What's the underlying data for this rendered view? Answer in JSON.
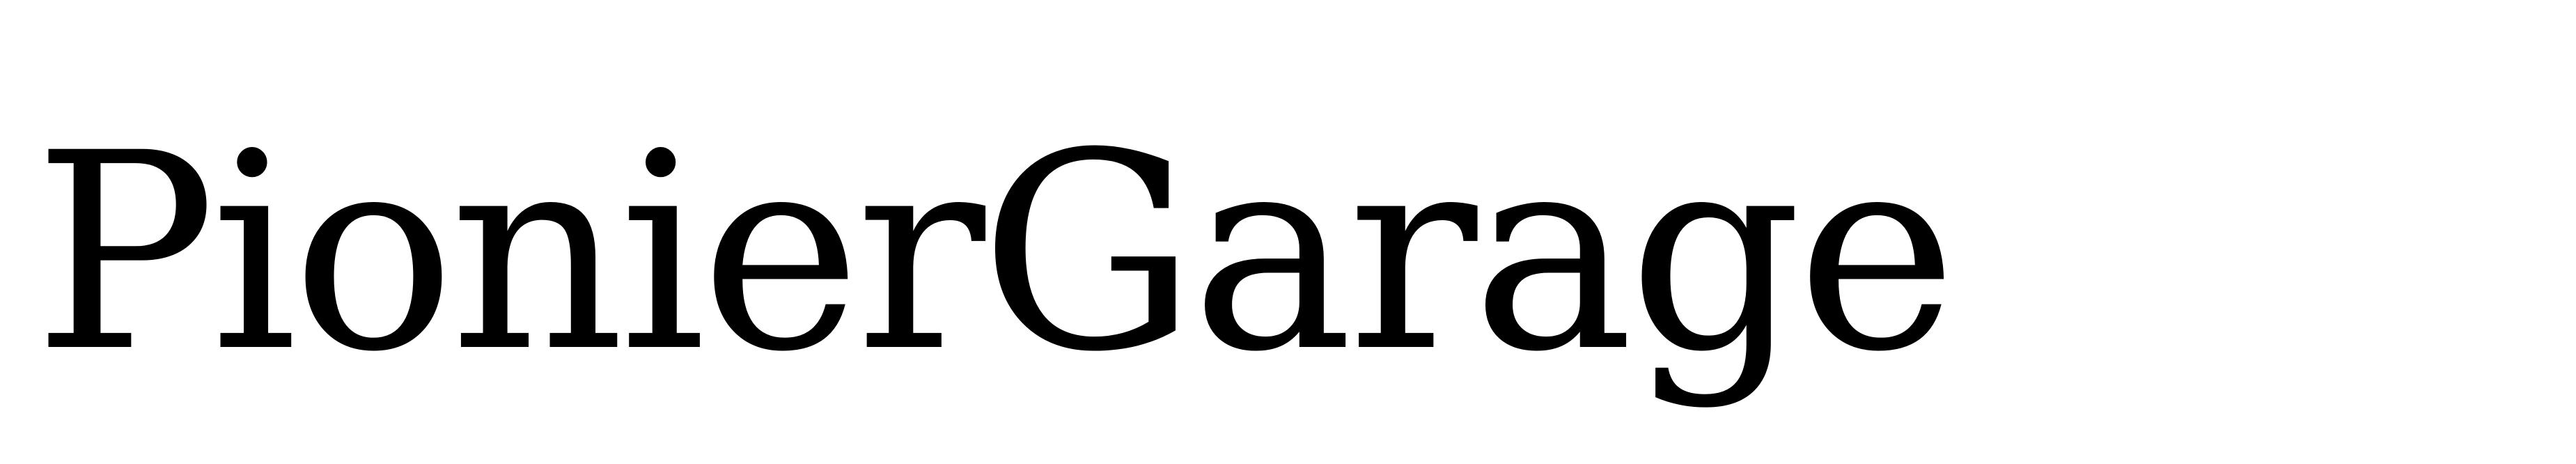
{
  "wordmark": {
    "text": "PionierGarage"
  },
  "colors": {
    "background": "#ffffff",
    "text": "#000000"
  }
}
